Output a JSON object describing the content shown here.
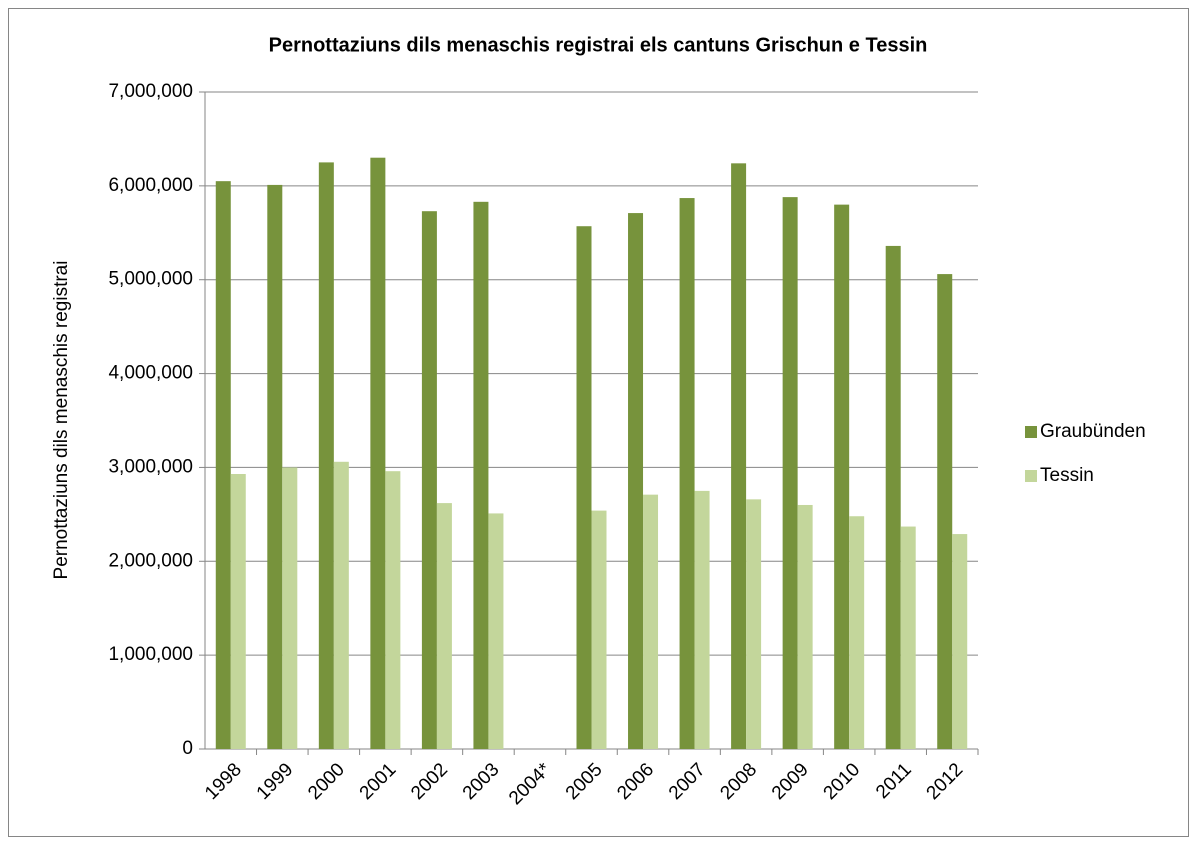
{
  "chart_data": {
    "type": "bar",
    "title": "Pernottaziuns dils menaschis registrai els cantuns Grischun e Tessin",
    "y_label": "Pernottaziuns dils menaschis registrai",
    "categories": [
      "1998",
      "1999",
      "2000",
      "2001",
      "2002",
      "2003",
      "2004*",
      "2005",
      "2006",
      "2007",
      "2008",
      "2009",
      "2010",
      "2011",
      "2012"
    ],
    "series": [
      {
        "name": "Graubünden",
        "color": "#77933c",
        "values": [
          6050000,
          6010000,
          6250000,
          6300000,
          5730000,
          5830000,
          null,
          5570000,
          5710000,
          5870000,
          6240000,
          5880000,
          5800000,
          5360000,
          5060000
        ]
      },
      {
        "name": "Tessin",
        "color": "#c3d69b",
        "values": [
          2930000,
          3000000,
          3060000,
          2960000,
          2620000,
          2510000,
          null,
          2540000,
          2710000,
          2750000,
          2660000,
          2600000,
          2480000,
          2370000,
          2290000
        ]
      }
    ],
    "ylim": [
      0,
      7000000
    ],
    "yticks": [
      0,
      {
        "value": 1000000,
        "label": "1,000,000"
      },
      {
        "value": 2000000,
        "label": "2,000,000"
      },
      {
        "value": 3000000,
        "label": "3,000,000"
      },
      {
        "value": 4000000,
        "label": "4,000,000"
      },
      {
        "value": 5000000,
        "label": "5,000,000"
      },
      {
        "value": 6000000,
        "label": "6,000,000"
      },
      {
        "value": 7000000,
        "label": "7,000,000"
      }
    ],
    "grid": true,
    "legend": "right"
  }
}
